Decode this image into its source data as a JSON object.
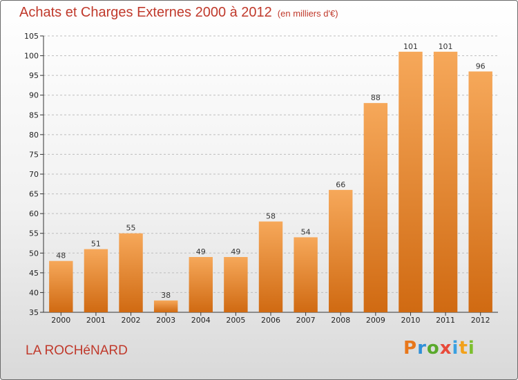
{
  "title": "Achats et Charges Externes 2000 à 2012",
  "unit": "(en milliers d'€)",
  "commune": "LA ROCHéNARD",
  "brand": {
    "letters": [
      {
        "ch": "P",
        "color": "#e8771b"
      },
      {
        "ch": "r",
        "color": "#2f8fd8"
      },
      {
        "ch": "o",
        "color": "#5aa92c"
      },
      {
        "ch": "x",
        "color": "#e84a3a"
      },
      {
        "ch": "i",
        "color": "#3aa0e0"
      },
      {
        "ch": "t",
        "color": "#f2a11a"
      },
      {
        "ch": "i",
        "color": "#7cbf2e"
      }
    ]
  },
  "colors": {
    "bar_top": "#f6a85a",
    "bar_bottom": "#d06a12",
    "grid": "#bdbdbd",
    "text_accent": "#c0392b"
  },
  "chart_data": {
    "type": "bar",
    "categories": [
      "2000",
      "2001",
      "2002",
      "2003",
      "2004",
      "2005",
      "2006",
      "2007",
      "2008",
      "2009",
      "2010",
      "2011",
      "2012"
    ],
    "values": [
      48,
      51,
      55,
      38,
      49,
      49,
      58,
      54,
      66,
      88,
      101,
      101,
      96
    ],
    "ylim": [
      35,
      105
    ],
    "yticks": [
      35,
      40,
      45,
      50,
      55,
      60,
      65,
      70,
      75,
      80,
      85,
      90,
      95,
      100,
      105
    ],
    "grid": true,
    "data_labels": true
  }
}
